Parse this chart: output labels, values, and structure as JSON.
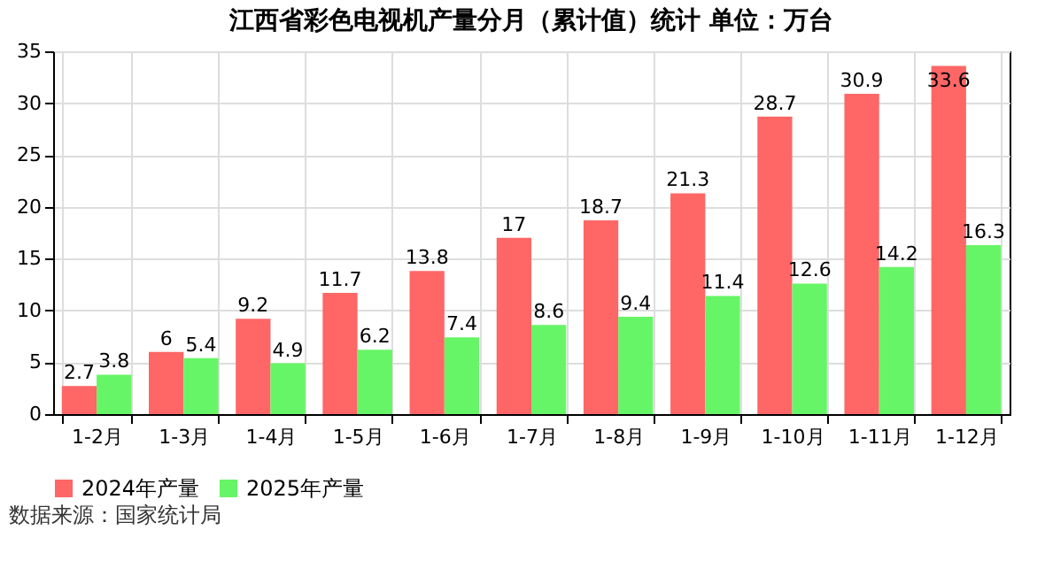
{
  "chart_data": {
    "type": "bar",
    "title": "江西省彩色电视机产量分月（累计值）统计  单位：万台",
    "categories": [
      "1-2月",
      "1-3月",
      "1-4月",
      "1-5月",
      "1-6月",
      "1-7月",
      "1-8月",
      "1-9月",
      "1-10月",
      "1-11月",
      "1-12月"
    ],
    "series": [
      {
        "name": "2024年产量",
        "color": "#ff6666",
        "values": [
          2.7,
          6,
          9.2,
          11.7,
          13.8,
          17,
          18.7,
          21.3,
          28.7,
          30.9,
          33.6
        ]
      },
      {
        "name": "2025年产量",
        "color": "#66f566",
        "values": [
          3.8,
          5.4,
          4.9,
          6.2,
          7.4,
          8.6,
          9.4,
          11.4,
          12.6,
          14.2,
          16.3
        ]
      }
    ],
    "ylim": [
      0,
      35
    ],
    "yticks": [
      0,
      5,
      10,
      15,
      20,
      25,
      30,
      35
    ],
    "grid": true,
    "legend": "bottom",
    "data_labels": true,
    "annotations": [
      "数据来源：国家统计局"
    ]
  }
}
